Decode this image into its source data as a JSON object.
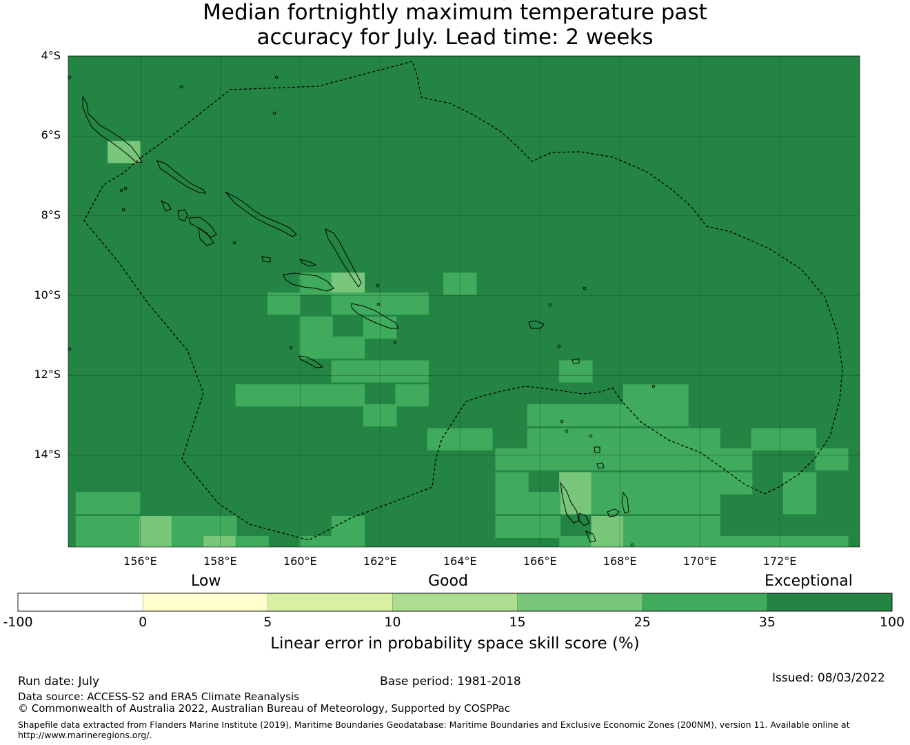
{
  "title": {
    "line1": "Median fortnightly maximum temperature past",
    "line2": "accuracy for July. Lead time: 2 weeks"
  },
  "map": {
    "lat_labels": [
      "4°S",
      "6°S",
      "8°S",
      "10°S",
      "12°S",
      "14°S"
    ],
    "lon_labels": [
      "156°E",
      "158°E",
      "160°E",
      "162°E",
      "164°E",
      "166°E",
      "168°E",
      "170°E",
      "172°E"
    ],
    "background_color": "#238443",
    "cells": [
      {
        "lon": 155.6,
        "lat": -6.4,
        "v": 20
      },
      {
        "lon": 160.4,
        "lat": -9.7,
        "v": 30
      },
      {
        "lon": 161.2,
        "lat": -9.7,
        "v": 20
      },
      {
        "lon": 159.6,
        "lat": -10.2,
        "v": 30
      },
      {
        "lon": 161.2,
        "lat": -10.2,
        "v": 30
      },
      {
        "lon": 162.0,
        "lat": -10.2,
        "v": 30
      },
      {
        "lon": 162.8,
        "lat": -10.2,
        "v": 30
      },
      {
        "lon": 164.0,
        "lat": -9.7,
        "v": 30
      },
      {
        "lon": 160.4,
        "lat": -10.8,
        "v": 30
      },
      {
        "lon": 162.0,
        "lat": -10.8,
        "v": 30
      },
      {
        "lon": 160.4,
        "lat": -11.3,
        "v": 30
      },
      {
        "lon": 161.2,
        "lat": -11.3,
        "v": 30
      },
      {
        "lon": 161.2,
        "lat": -11.9,
        "v": 30
      },
      {
        "lon": 162.0,
        "lat": -11.9,
        "v": 30
      },
      {
        "lon": 162.8,
        "lat": -11.9,
        "v": 30
      },
      {
        "lon": 158.8,
        "lat": -12.5,
        "v": 30
      },
      {
        "lon": 159.6,
        "lat": -12.5,
        "v": 30
      },
      {
        "lon": 160.4,
        "lat": -12.5,
        "v": 30
      },
      {
        "lon": 161.2,
        "lat": -12.5,
        "v": 30
      },
      {
        "lon": 162.8,
        "lat": -12.5,
        "v": 30
      },
      {
        "lon": 162.0,
        "lat": -13.0,
        "v": 30
      },
      {
        "lon": 163.6,
        "lat": -13.6,
        "v": 30
      },
      {
        "lon": 164.4,
        "lat": -13.6,
        "v": 30
      },
      {
        "lon": 166.9,
        "lat": -11.9,
        "v": 30
      },
      {
        "lon": 168.5,
        "lat": -12.5,
        "v": 30
      },
      {
        "lon": 169.3,
        "lat": -12.5,
        "v": 30
      },
      {
        "lon": 166.1,
        "lat": -13.0,
        "v": 30
      },
      {
        "lon": 166.9,
        "lat": -13.0,
        "v": 30
      },
      {
        "lon": 167.7,
        "lat": -13.0,
        "v": 30
      },
      {
        "lon": 168.5,
        "lat": -13.0,
        "v": 30
      },
      {
        "lon": 169.3,
        "lat": -13.0,
        "v": 30
      },
      {
        "lon": 166.1,
        "lat": -13.6,
        "v": 30
      },
      {
        "lon": 166.9,
        "lat": -13.6,
        "v": 30
      },
      {
        "lon": 167.7,
        "lat": -13.6,
        "v": 30
      },
      {
        "lon": 168.5,
        "lat": -13.6,
        "v": 30
      },
      {
        "lon": 169.3,
        "lat": -13.6,
        "v": 30
      },
      {
        "lon": 170.1,
        "lat": -13.6,
        "v": 30
      },
      {
        "lon": 171.7,
        "lat": -13.6,
        "v": 30
      },
      {
        "lon": 172.5,
        "lat": -13.6,
        "v": 30
      },
      {
        "lon": 165.3,
        "lat": -14.1,
        "v": 30
      },
      {
        "lon": 166.1,
        "lat": -14.1,
        "v": 30
      },
      {
        "lon": 166.9,
        "lat": -14.1,
        "v": 30
      },
      {
        "lon": 167.7,
        "lat": -14.1,
        "v": 30
      },
      {
        "lon": 168.5,
        "lat": -14.1,
        "v": 30
      },
      {
        "lon": 169.3,
        "lat": -14.1,
        "v": 30
      },
      {
        "lon": 170.1,
        "lat": -14.1,
        "v": 30
      },
      {
        "lon": 170.9,
        "lat": -14.1,
        "v": 30
      },
      {
        "lon": 173.3,
        "lat": -14.1,
        "v": 30
      },
      {
        "lon": 165.3,
        "lat": -14.7,
        "v": 30
      },
      {
        "lon": 166.9,
        "lat": -14.7,
        "v": 20
      },
      {
        "lon": 167.7,
        "lat": -14.7,
        "v": 30
      },
      {
        "lon": 168.5,
        "lat": -14.7,
        "v": 30
      },
      {
        "lon": 169.3,
        "lat": -14.7,
        "v": 30
      },
      {
        "lon": 170.1,
        "lat": -14.7,
        "v": 30
      },
      {
        "lon": 170.9,
        "lat": -14.7,
        "v": 30
      },
      {
        "lon": 172.5,
        "lat": -14.7,
        "v": 30
      },
      {
        "lon": 166.9,
        "lat": -15.2,
        "v": 20
      },
      {
        "lon": 165.3,
        "lat": -15.2,
        "v": 30
      },
      {
        "lon": 166.1,
        "lat": -15.2,
        "v": 30
      },
      {
        "lon": 167.7,
        "lat": -15.2,
        "v": 30
      },
      {
        "lon": 168.5,
        "lat": -15.2,
        "v": 30
      },
      {
        "lon": 169.3,
        "lat": -15.2,
        "v": 30
      },
      {
        "lon": 170.1,
        "lat": -15.2,
        "v": 30
      },
      {
        "lon": 172.5,
        "lat": -15.2,
        "v": 30
      },
      {
        "lon": 165.3,
        "lat": -15.8,
        "v": 30
      },
      {
        "lon": 166.1,
        "lat": -15.8,
        "v": 30
      },
      {
        "lon": 167.7,
        "lat": -15.8,
        "v": 20
      },
      {
        "lon": 168.5,
        "lat": -15.8,
        "v": 30
      },
      {
        "lon": 169.3,
        "lat": -15.8,
        "v": 30
      },
      {
        "lon": 170.1,
        "lat": -15.8,
        "v": 30
      },
      {
        "lon": 166.9,
        "lat": -16.3,
        "v": 30
      },
      {
        "lon": 167.7,
        "lat": -16.3,
        "v": 20
      },
      {
        "lon": 168.5,
        "lat": -16.3,
        "v": 30
      },
      {
        "lon": 169.3,
        "lat": -16.3,
        "v": 30
      },
      {
        "lon": 170.1,
        "lat": -16.3,
        "v": 30
      },
      {
        "lon": 170.9,
        "lat": -16.3,
        "v": 30
      },
      {
        "lon": 172.5,
        "lat": -16.3,
        "v": 30
      },
      {
        "lon": 173.3,
        "lat": -16.3,
        "v": 30
      },
      {
        "lon": 171.7,
        "lat": -16.3,
        "v": 30
      },
      {
        "lon": 154.8,
        "lat": -15.2,
        "v": 30
      },
      {
        "lon": 155.6,
        "lat": -15.2,
        "v": 30
      },
      {
        "lon": 154.8,
        "lat": -15.8,
        "v": 30
      },
      {
        "lon": 155.6,
        "lat": -15.8,
        "v": 30
      },
      {
        "lon": 154.8,
        "lat": -16.3,
        "v": 30
      },
      {
        "lon": 155.6,
        "lat": -16.3,
        "v": 30
      },
      {
        "lon": 156.4,
        "lat": -15.8,
        "v": 20
      },
      {
        "lon": 156.4,
        "lat": -16.3,
        "v": 20
      },
      {
        "lon": 157.2,
        "lat": -15.8,
        "v": 30
      },
      {
        "lon": 157.2,
        "lat": -16.3,
        "v": 30
      },
      {
        "lon": 158.0,
        "lat": -15.8,
        "v": 30
      },
      {
        "lon": 158.0,
        "lat": -16.3,
        "v": 20
      },
      {
        "lon": 158.8,
        "lat": -16.3,
        "v": 30
      },
      {
        "lon": 160.4,
        "lat": -16.3,
        "v": 30
      },
      {
        "lon": 161.2,
        "lat": -15.8,
        "v": 30
      },
      {
        "lon": 161.2,
        "lat": -16.3,
        "v": 30
      }
    ]
  },
  "legend": {
    "categories": [
      "Low",
      "Good",
      "Exceptional"
    ],
    "ticks": [
      "-100",
      "0",
      "5",
      "10",
      "15",
      "25",
      "35",
      "100"
    ],
    "colors": [
      "#ffffff",
      "#ffffcc",
      "#d9f0a3",
      "#addd8e",
      "#78c679",
      "#41ab5d",
      "#238443"
    ],
    "title": "Linear error in probability space skill score (%)"
  },
  "footer": {
    "run_date": "Run date: July",
    "base_period": "Base period: 1981-2018",
    "issued": "Issued: 08/03/2022",
    "data_source": "Data source: ACCESS-S2 and ERA5 Climate Reanalysis",
    "copyright": "© Commonwealth of Australia 2022, Australian Bureau of Meteorology, Supported by COSPPac",
    "shapefile_line1": "Shapefile data extracted from Flanders Marine Institute (2019), Maritime Boundaries Geodatabase: Maritime Boundaries and Exclusive Economic Zones (200NM), version 11. Available online at",
    "shapefile_line2": "http://www.marineregions.org/."
  }
}
